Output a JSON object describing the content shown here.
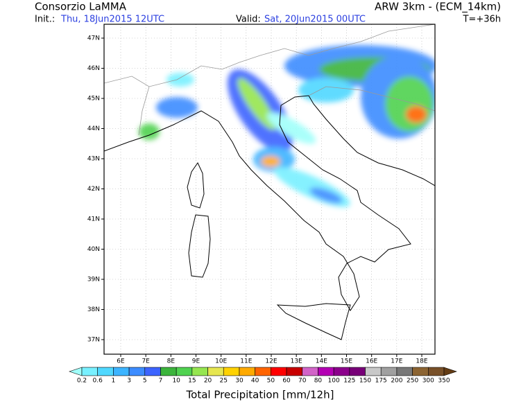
{
  "header": {
    "title": "Consorzio LaMMA",
    "model": "ARW 3km - (ECM_14km)",
    "init_label": "Init.:",
    "init": "Thu, 18Jun2015 12UTC",
    "valid_label": "Valid:",
    "valid": "Sat, 20Jun2015 00UTC",
    "lead": "T=+36h"
  },
  "map": {
    "lat_labels": [
      "47N",
      "46N",
      "45N",
      "44N",
      "43N",
      "42N",
      "41N",
      "40N",
      "39N",
      "38N",
      "37N"
    ],
    "lon_labels": [
      "6E",
      "7E",
      "8E",
      "9E",
      "10E",
      "11E",
      "12E",
      "13E",
      "14E",
      "15E",
      "16E",
      "17E",
      "18E"
    ]
  },
  "colorbar": {
    "labels": [
      "0.2",
      "0.6",
      "1",
      "3",
      "5",
      "7",
      "10",
      "15",
      "20",
      "25",
      "30",
      "40",
      "50",
      "60",
      "70",
      "80",
      "100",
      "125",
      "150",
      "175",
      "200",
      "250",
      "300",
      "350"
    ],
    "colors": [
      "#a0fffa",
      "#78f0ff",
      "#50d8ff",
      "#3cb4ff",
      "#3c8cff",
      "#3c64ff",
      "#3cb43c",
      "#50d250",
      "#96e650",
      "#e6e650",
      "#ffd200",
      "#ffaa00",
      "#ff6400",
      "#ff0000",
      "#c80000",
      "#d264c8",
      "#b400b4",
      "#8c008c",
      "#780078",
      "#c8c8c8",
      "#a0a0a0",
      "#787878",
      "#8c6432",
      "#785028",
      "#643c14"
    ],
    "title": "Total Precipitation [mm/12h]"
  }
}
